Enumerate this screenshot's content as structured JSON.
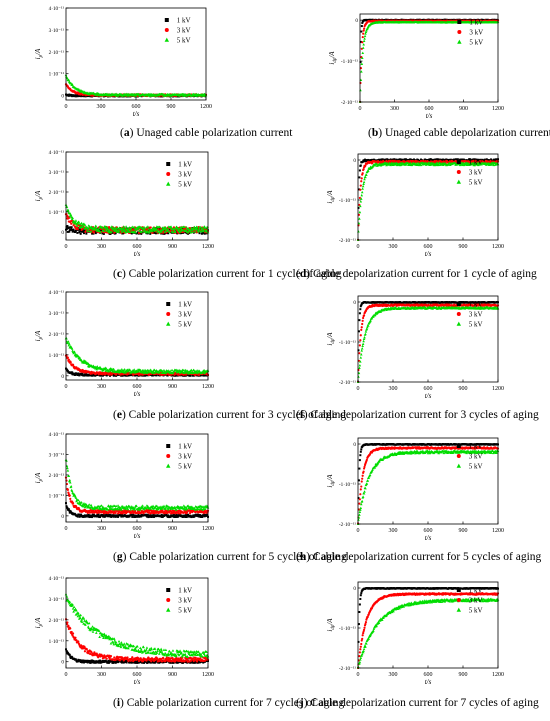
{
  "legend": {
    "markers": {
      "1 kV": "square",
      "3 kV": "circle",
      "5 kV": "triangle"
    },
    "colors": {
      "1 kV": "#000000",
      "3 kV": "#ff0000",
      "5 kV": "#00dd00"
    }
  },
  "panels": [
    {
      "id": "a",
      "caption": "Unaged cable polarization current"
    },
    {
      "id": "b",
      "caption": "Unaged cable depolarization current"
    },
    {
      "id": "c",
      "caption": "Cable polarization current for 1 cycle of aging"
    },
    {
      "id": "d",
      "caption": "Cable depolarization current for 1 cycle of aging"
    },
    {
      "id": "e",
      "caption": "Cable polarization current for 3 cycles of aging"
    },
    {
      "id": "f",
      "caption": "Cable depolarization current for 3 cycles of aging"
    },
    {
      "id": "g",
      "caption": "Cable polarization current for 5 cycles of aging"
    },
    {
      "id": "h",
      "caption": "Cable depolarization current for 5 cycles of aging"
    },
    {
      "id": "i",
      "caption": "Cable polarization current for 7 cycles of aging"
    },
    {
      "id": "j",
      "caption": "Cable depolarization current for 7 cycles of aging"
    }
  ],
  "chart_data": [
    {
      "panel": "a",
      "type": "scatter",
      "xlabel": "t/s",
      "ylabel": "i_p/A",
      "xlim": [
        0,
        1200
      ],
      "ylim": [
        -2e-12,
        4e-11
      ],
      "xticks": [
        0,
        300,
        600,
        900,
        1200
      ],
      "yticks": [
        0,
        1e-11,
        2e-11,
        3e-11,
        4e-11
      ],
      "series": [
        {
          "name": "1 kV",
          "i0": 5e-13,
          "tau": 30,
          "ifinal": 0.0,
          "noise": 4e-13
        },
        {
          "name": "3 kV",
          "i0": 5e-12,
          "tau": 60,
          "ifinal": 2e-13,
          "noise": 4e-13
        },
        {
          "name": "5 kV",
          "i0": 9e-12,
          "tau": 80,
          "ifinal": 3e-13,
          "noise": 4e-13
        }
      ]
    },
    {
      "panel": "b",
      "type": "scatter",
      "xlabel": "t/s",
      "ylabel": "i_dp/A",
      "xlim": [
        0,
        1200
      ],
      "ylim": [
        -2e-11,
        1.5e-12
      ],
      "xticks": [
        0,
        300,
        600,
        900,
        1200
      ],
      "yticks": [
        0,
        -1e-11,
        -2e-11
      ],
      "series": [
        {
          "name": "1 kV",
          "i0": -2e-11,
          "tau": 6,
          "ifinal": 0.0,
          "noise": 1e-13
        },
        {
          "name": "3 kV",
          "i0": -2e-11,
          "tau": 15,
          "ifinal": -2e-13,
          "noise": 1e-13
        },
        {
          "name": "5 kV",
          "i0": -2e-11,
          "tau": 25,
          "ifinal": -5e-13,
          "noise": 1e-13
        }
      ]
    },
    {
      "panel": "c",
      "type": "scatter",
      "xlabel": "t/s",
      "ylabel": "i_p/A",
      "xlim": [
        0,
        1200
      ],
      "ylim": [
        -4e-12,
        4e-11
      ],
      "xticks": [
        0,
        300,
        600,
        900,
        1200
      ],
      "yticks": [
        0,
        1e-11,
        2e-11,
        3e-11,
        4e-11
      ],
      "series": [
        {
          "name": "1 kV",
          "i0": 2e-12,
          "tau": 40,
          "ifinal": 5e-13,
          "noise": 1.5e-12
        },
        {
          "name": "3 kV",
          "i0": 9e-12,
          "tau": 60,
          "ifinal": 1e-12,
          "noise": 1.5e-12
        },
        {
          "name": "5 kV",
          "i0": 1.3e-11,
          "tau": 70,
          "ifinal": 1.2e-12,
          "noise": 1.5e-12
        }
      ]
    },
    {
      "panel": "d",
      "type": "scatter",
      "xlabel": "t/s",
      "ylabel": "i_dp/A",
      "xlim": [
        0,
        1200
      ],
      "ylim": [
        -2e-11,
        1.5e-12
      ],
      "xticks": [
        0,
        300,
        600,
        900,
        1200
      ],
      "yticks": [
        0,
        -1e-11,
        -2e-11
      ],
      "series": [
        {
          "name": "1 kV",
          "i0": -2e-11,
          "tau": 8,
          "ifinal": -1e-13,
          "noise": 3e-13
        },
        {
          "name": "3 kV",
          "i0": -2e-11,
          "tau": 20,
          "ifinal": -5e-13,
          "noise": 3e-13
        },
        {
          "name": "5 kV",
          "i0": -2e-11,
          "tau": 35,
          "ifinal": -1e-12,
          "noise": 3e-13
        }
      ]
    },
    {
      "panel": "e",
      "type": "scatter",
      "xlabel": "t/s",
      "ylabel": "i_p/A",
      "xlim": [
        0,
        1200
      ],
      "ylim": [
        -2e-12,
        4e-11
      ],
      "xticks": [
        0,
        300,
        600,
        900,
        1200
      ],
      "yticks": [
        0,
        1e-11,
        2e-11,
        3e-11,
        4e-11
      ],
      "series": [
        {
          "name": "1 kV",
          "i0": 3e-12,
          "tau": 40,
          "ifinal": 5e-13,
          "noise": 5e-13
        },
        {
          "name": "3 kV",
          "i0": 1e-11,
          "tau": 70,
          "ifinal": 1e-12,
          "noise": 6e-13
        },
        {
          "name": "5 kV",
          "i0": 1.8e-11,
          "tau": 120,
          "ifinal": 2e-12,
          "noise": 8e-13
        }
      ]
    },
    {
      "panel": "f",
      "type": "scatter",
      "xlabel": "t/s",
      "ylabel": "i_dp/A",
      "xlim": [
        0,
        1200
      ],
      "ylim": [
        -2e-11,
        1.5e-12
      ],
      "xticks": [
        0,
        300,
        600,
        900,
        1200
      ],
      "yticks": [
        0,
        -1e-11,
        -2e-11
      ],
      "series": [
        {
          "name": "1 kV",
          "i0": -2e-11,
          "tau": 8,
          "ifinal": -1e-13,
          "noise": 1e-13
        },
        {
          "name": "3 kV",
          "i0": -2e-11,
          "tau": 25,
          "ifinal": -8e-13,
          "noise": 2e-13
        },
        {
          "name": "5 kV",
          "i0": -2e-11,
          "tau": 60,
          "ifinal": -1.5e-12,
          "noise": 2e-13
        }
      ]
    },
    {
      "panel": "g",
      "type": "scatter",
      "xlabel": "t/s",
      "ylabel": "i_p/A",
      "xlim": [
        0,
        1200
      ],
      "ylim": [
        -3e-12,
        4e-11
      ],
      "xticks": [
        0,
        300,
        600,
        900,
        1200
      ],
      "yticks": [
        0,
        1e-11,
        2e-11,
        3e-11,
        4e-11
      ],
      "series": [
        {
          "name": "1 kV",
          "i0": 6e-12,
          "tau": 30,
          "ifinal": 0.0,
          "noise": 6e-13
        },
        {
          "name": "3 kV",
          "i0": 1.8e-11,
          "tau": 40,
          "ifinal": 2e-12,
          "noise": 8e-13
        },
        {
          "name": "5 kV",
          "i0": 2.8e-11,
          "tau": 50,
          "ifinal": 4e-12,
          "noise": 1e-12
        }
      ]
    },
    {
      "panel": "h",
      "type": "scatter",
      "xlabel": "t/s",
      "ylabel": "i_dp/A",
      "xlim": [
        0,
        1200
      ],
      "ylim": [
        -2e-11,
        1.5e-12
      ],
      "xticks": [
        0,
        300,
        600,
        900,
        1200
      ],
      "yticks": [
        0,
        -1e-11,
        -2e-11
      ],
      "series": [
        {
          "name": "1 kV",
          "i0": -2e-11,
          "tau": 10,
          "ifinal": -1e-13,
          "noise": 1e-13
        },
        {
          "name": "3 kV",
          "i0": -2e-11,
          "tau": 40,
          "ifinal": -1e-12,
          "noise": 2e-13
        },
        {
          "name": "5 kV",
          "i0": -2e-11,
          "tau": 90,
          "ifinal": -2e-12,
          "noise": 3e-13
        }
      ]
    },
    {
      "panel": "i",
      "type": "scatter",
      "xlabel": "t/s",
      "ylabel": "i_p/A",
      "xlim": [
        0,
        1200
      ],
      "ylim": [
        -3e-12,
        4e-11
      ],
      "xticks": [
        0,
        300,
        600,
        900,
        1200
      ],
      "yticks": [
        0,
        1e-11,
        2e-11,
        3e-11,
        4e-11
      ],
      "series": [
        {
          "name": "1 kV",
          "i0": 6e-12,
          "tau": 40,
          "ifinal": 0.0,
          "noise": 6e-13
        },
        {
          "name": "3 kV",
          "i0": 2e-11,
          "tau": 120,
          "ifinal": 1e-12,
          "noise": 1e-12
        },
        {
          "name": "5 kV",
          "i0": 3.1e-11,
          "tau": 280,
          "ifinal": 3e-12,
          "noise": 1.5e-12
        }
      ]
    },
    {
      "panel": "j",
      "type": "scatter",
      "xlabel": "t/s",
      "ylabel": "i_dp/A",
      "xlim": [
        0,
        1200
      ],
      "ylim": [
        -2e-11,
        1.5e-12
      ],
      "xticks": [
        0,
        300,
        600,
        900,
        1200
      ],
      "yticks": [
        0,
        -1e-11,
        -2e-11
      ],
      "series": [
        {
          "name": "1 kV",
          "i0": -2e-11,
          "tau": 10,
          "ifinal": -1e-13,
          "noise": 1e-13
        },
        {
          "name": "3 kV",
          "i0": -2e-11,
          "tau": 70,
          "ifinal": -1.5e-12,
          "noise": 2e-13
        },
        {
          "name": "5 kV",
          "i0": -2e-11,
          "tau": 160,
          "ifinal": -3e-12,
          "noise": 3e-13
        }
      ]
    }
  ]
}
